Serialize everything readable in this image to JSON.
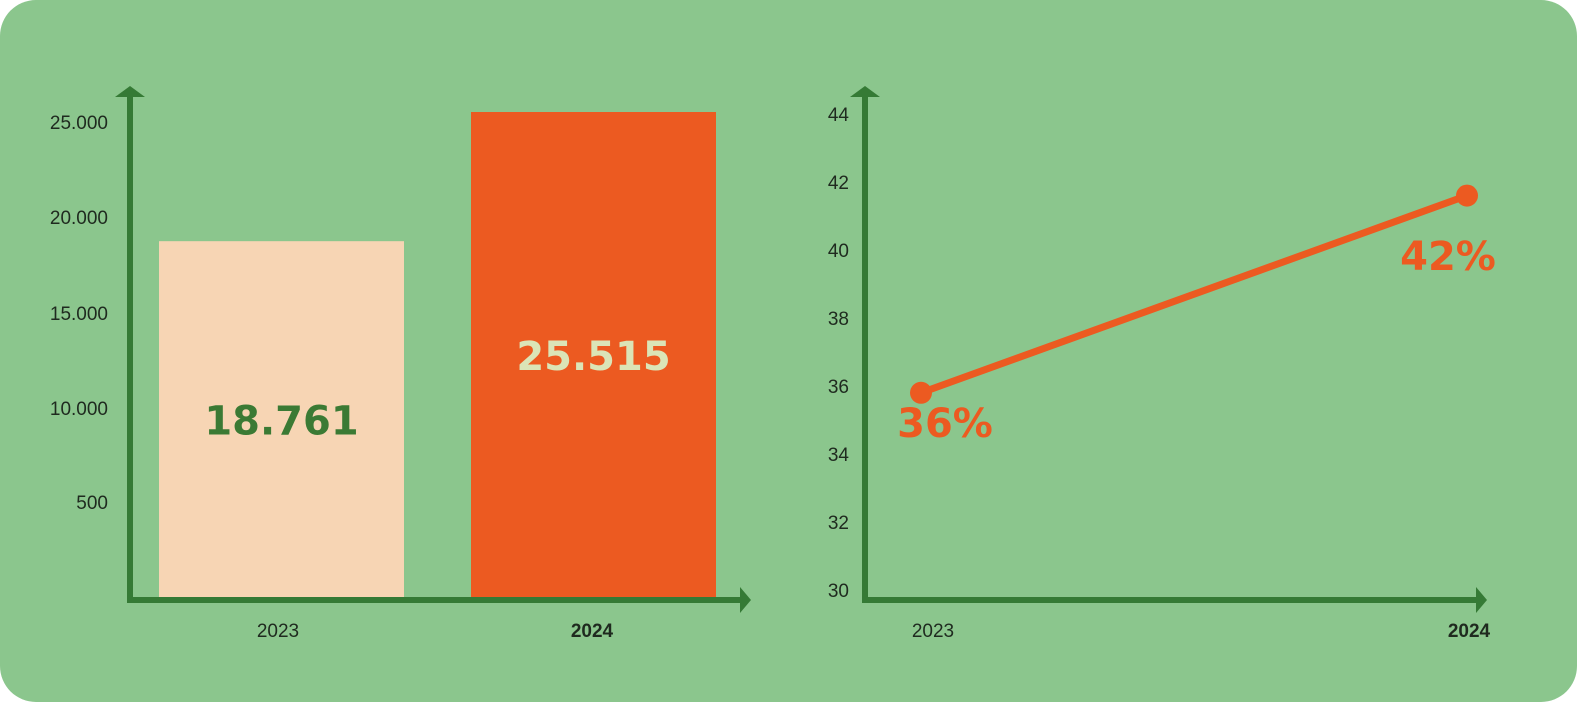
{
  "chart_data": [
    {
      "type": "bar",
      "categories": [
        "2023",
        "2024"
      ],
      "values": [
        18761,
        25515
      ],
      "value_labels": [
        "18.761",
        "25.515"
      ],
      "y_tick_labels": [
        "500",
        "10.000",
        "15.000",
        "20.000",
        "25.000"
      ],
      "ylim": [
        0,
        26000
      ],
      "grid": false,
      "colors": {
        "bar_2023": "#f7d5b4",
        "bar_2024": "#ec5a21",
        "label_2023": "#3b7a34",
        "label_2024": "#dbe4b7",
        "axis": "#357a35"
      }
    },
    {
      "type": "line",
      "categories": [
        "2023",
        "2024"
      ],
      "values": [
        36,
        42
      ],
      "value_labels": [
        "36%",
        "42%"
      ],
      "y_ticks": [
        30,
        32,
        34,
        36,
        38,
        40,
        42,
        44
      ],
      "ylim": [
        30,
        44
      ],
      "grid": false,
      "colors": {
        "line": "#ec5a21",
        "label": "#ec5a21",
        "axis": "#357a35"
      }
    }
  ]
}
